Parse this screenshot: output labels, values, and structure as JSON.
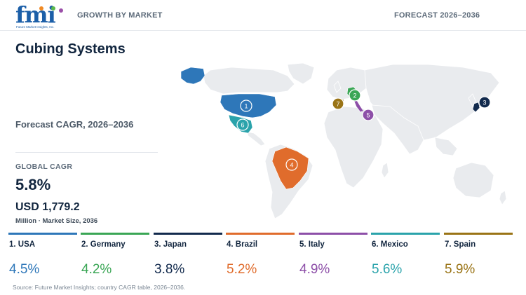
{
  "header": {
    "logo_text": "fmi",
    "logo_tagline": "Future Market Insights, Inc.",
    "left_label": "GROWTH BY MARKET",
    "right_label": "FORECAST 2026–2036"
  },
  "title": "Cubing Systems",
  "forecast_label": "Forecast CAGR, 2026–2036",
  "global": {
    "label": "GLOBAL CAGR",
    "value": "5.8%",
    "market_size": "USD 1,779.2",
    "market_size_caption": "Million · Market Size, 2036"
  },
  "countries": [
    {
      "rank": "1",
      "name": "1. USA",
      "cagr": "4.5%",
      "color": "#2e77b9"
    },
    {
      "rank": "2",
      "name": "2. Germany",
      "cagr": "4.2%",
      "color": "#3aa655"
    },
    {
      "rank": "3",
      "name": "3. Japan",
      "cagr": "3.8%",
      "color": "#122a4d"
    },
    {
      "rank": "4",
      "name": "4. Brazil",
      "cagr": "5.2%",
      "color": "#e06c2c"
    },
    {
      "rank": "5",
      "name": "5. Italy",
      "cagr": "4.9%",
      "color": "#8d4fa8"
    },
    {
      "rank": "6",
      "name": "6. Mexico",
      "cagr": "5.6%",
      "color": "#2aa3ab"
    },
    {
      "rank": "7",
      "name": "7. Spain",
      "cagr": "5.9%",
      "color": "#9a7416"
    }
  ],
  "source": "Source: Future Market Insights; country CAGR table, 2026–2036."
}
